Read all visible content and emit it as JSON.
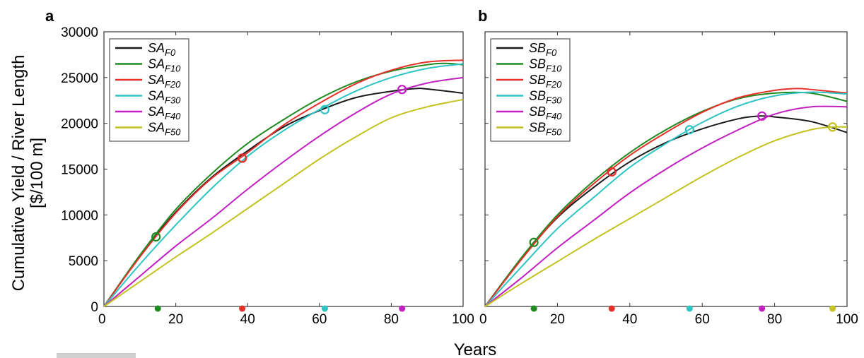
{
  "ylabel_line1": "Cumulative Yield / River Length",
  "ylabel_line2": "[$/100 m]",
  "xlabel": "Years",
  "chart_data": [
    {
      "type": "line",
      "panel": "a",
      "xlim": [
        0,
        100
      ],
      "ylim": [
        0,
        30000
      ],
      "xticks": [
        0,
        20,
        40,
        60,
        80,
        100
      ],
      "yticks": [
        0,
        5000,
        10000,
        15000,
        20000,
        25000,
        30000
      ],
      "legend_position": "top-left",
      "grid": false,
      "series": [
        {
          "name": "SA",
          "sub": "F0",
          "color": "#1a1a1a",
          "x": [
            0,
            10,
            20,
            30,
            40,
            50,
            60,
            70,
            80,
            87,
            90,
            100
          ],
          "y": [
            0,
            5500,
            10300,
            14100,
            17000,
            19600,
            21400,
            22800,
            23500,
            23800,
            23750,
            23300
          ],
          "marker": {
            "x": 38.5,
            "y": 16200
          }
        },
        {
          "name": "SA",
          "sub": "F10",
          "color": "#1f8a1f",
          "x": [
            0,
            10,
            20,
            30,
            40,
            50,
            60,
            70,
            80,
            90,
            95,
            100
          ],
          "y": [
            0,
            5600,
            10600,
            14500,
            17800,
            20400,
            22700,
            24500,
            25700,
            26400,
            26550,
            26400
          ],
          "marker": {
            "x": 14.5,
            "y": 7600
          }
        },
        {
          "name": "SA",
          "sub": "F20",
          "color": "#e8302a",
          "x": [
            0,
            10,
            20,
            30,
            40,
            50,
            60,
            70,
            80,
            90,
            100
          ],
          "y": [
            0,
            5400,
            10200,
            14000,
            16800,
            19800,
            22200,
            24300,
            25800,
            26700,
            26900
          ],
          "marker": {
            "x": 38.5,
            "y": 16200
          }
        },
        {
          "name": "SA",
          "sub": "F30",
          "color": "#2ec4c4",
          "x": [
            0,
            10,
            20,
            30,
            40,
            50,
            60,
            70,
            80,
            90,
            100
          ],
          "y": [
            0,
            4600,
            8900,
            12900,
            16400,
            19200,
            21500,
            23500,
            25000,
            26000,
            26500
          ],
          "marker": {
            "x": 61.5,
            "y": 21500
          }
        },
        {
          "name": "SA",
          "sub": "F40",
          "color": "#c21fc2",
          "x": [
            0,
            10,
            20,
            30,
            40,
            50,
            60,
            70,
            80,
            90,
            100
          ],
          "y": [
            0,
            3300,
            6600,
            9600,
            12800,
            15800,
            18600,
            21100,
            23200,
            24400,
            25000
          ],
          "marker": {
            "x": 83,
            "y": 23700
          }
        },
        {
          "name": "SA",
          "sub": "F50",
          "color": "#c4c21f",
          "x": [
            0,
            10,
            20,
            30,
            40,
            50,
            60,
            70,
            80,
            90,
            100
          ],
          "y": [
            0,
            2700,
            5400,
            8000,
            10700,
            13400,
            16100,
            18500,
            20600,
            21800,
            22600
          ],
          "marker": null
        }
      ],
      "axis_points": [
        {
          "x": 15,
          "color": "#1f8a1f"
        },
        {
          "x": 38.5,
          "color": "#e8302a"
        },
        {
          "x": 61.5,
          "color": "#2ec4c4"
        },
        {
          "x": 83,
          "color": "#c21fc2"
        }
      ]
    },
    {
      "type": "line",
      "panel": "b",
      "xlim": [
        0,
        100
      ],
      "ylim": [
        0,
        30000
      ],
      "xticks": [
        0,
        20,
        40,
        60,
        80,
        100
      ],
      "yticks": [
        0,
        5000,
        10000,
        15000,
        20000,
        25000,
        30000
      ],
      "legend_position": "top-left",
      "grid": false,
      "series": [
        {
          "name": "SB",
          "sub": "F0",
          "color": "#1a1a1a",
          "x": [
            0,
            10,
            20,
            30,
            40,
            50,
            60,
            70,
            76,
            80,
            90,
            100
          ],
          "y": [
            0,
            5200,
            9700,
            13000,
            15800,
            17900,
            19400,
            20500,
            20800,
            20700,
            20200,
            19000
          ],
          "marker": {
            "x": 35,
            "y": 14700
          }
        },
        {
          "name": "SB",
          "sub": "F10",
          "color": "#1f8a1f",
          "x": [
            0,
            10,
            20,
            30,
            40,
            50,
            60,
            70,
            80,
            90,
            100
          ],
          "y": [
            0,
            5300,
            10000,
            13700,
            16800,
            19300,
            21300,
            22700,
            23300,
            23300,
            22400
          ],
          "marker": {
            "x": 13.5,
            "y": 7000
          }
        },
        {
          "name": "SB",
          "sub": "F20",
          "color": "#e8302a",
          "x": [
            0,
            10,
            20,
            30,
            40,
            50,
            60,
            70,
            80,
            86,
            90,
            100
          ],
          "y": [
            0,
            5100,
            9800,
            13400,
            16500,
            19000,
            21200,
            22800,
            23600,
            23800,
            23700,
            23300
          ],
          "marker": {
            "x": 35,
            "y": 14700
          }
        },
        {
          "name": "SB",
          "sub": "F30",
          "color": "#2ec4c4",
          "x": [
            0,
            10,
            20,
            30,
            40,
            50,
            60,
            70,
            80,
            90,
            100
          ],
          "y": [
            0,
            4300,
            8500,
            11900,
            15200,
            17800,
            20100,
            21900,
            23000,
            23400,
            23200
          ],
          "marker": {
            "x": 56.5,
            "y": 19300
          }
        },
        {
          "name": "SB",
          "sub": "F40",
          "color": "#c21fc2",
          "x": [
            0,
            10,
            20,
            30,
            40,
            50,
            60,
            70,
            80,
            90,
            100
          ],
          "y": [
            0,
            3100,
            6400,
            9400,
            12400,
            15000,
            17300,
            19300,
            21000,
            21800,
            21800
          ],
          "marker": {
            "x": 76.5,
            "y": 20800
          }
        },
        {
          "name": "SB",
          "sub": "F50",
          "color": "#c4c21f",
          "x": [
            0,
            10,
            20,
            30,
            40,
            50,
            60,
            70,
            80,
            90,
            96,
            100
          ],
          "y": [
            0,
            2500,
            4900,
            7300,
            9600,
            11900,
            14200,
            16300,
            18100,
            19300,
            19600,
            19600
          ],
          "marker": {
            "x": 96,
            "y": 19600
          }
        }
      ],
      "axis_points": [
        {
          "x": 13.5,
          "color": "#1f8a1f"
        },
        {
          "x": 35,
          "color": "#e8302a"
        },
        {
          "x": 56.5,
          "color": "#2ec4c4"
        },
        {
          "x": 76.5,
          "color": "#c21fc2"
        },
        {
          "x": 96,
          "color": "#c4c21f"
        }
      ]
    }
  ]
}
